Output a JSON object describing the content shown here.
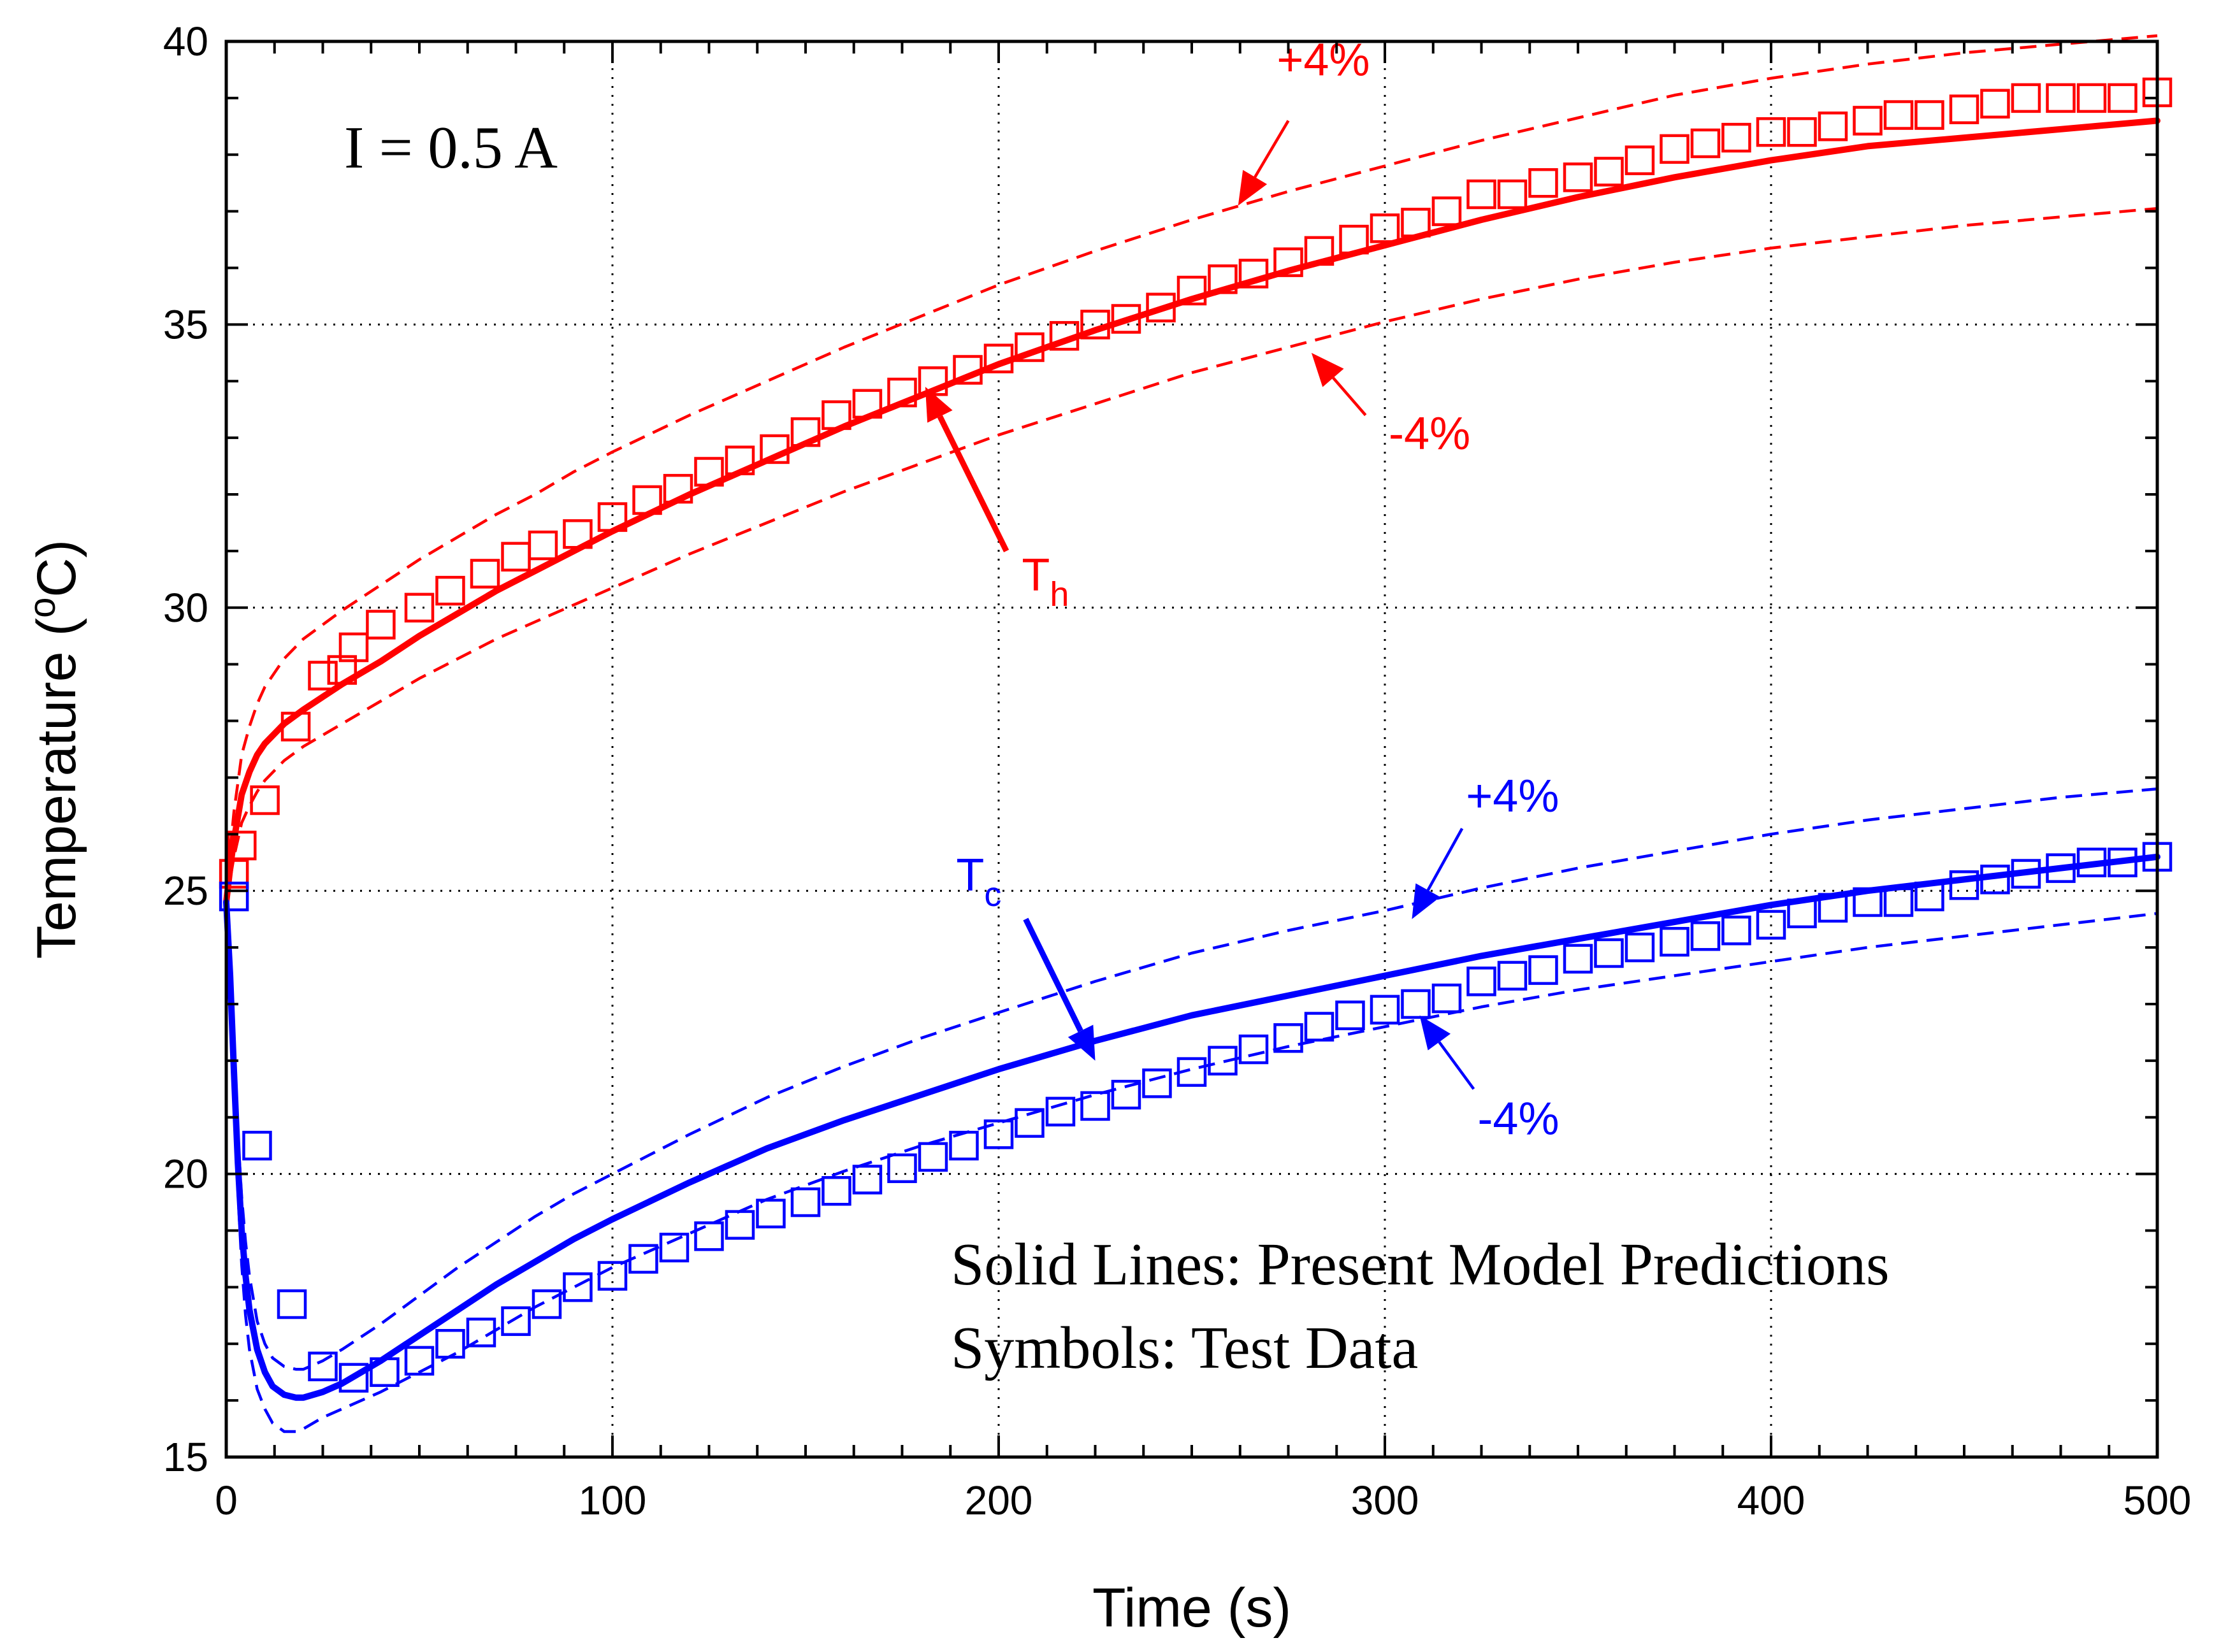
{
  "chart_data": {
    "type": "line",
    "title": "",
    "xlabel": "Time (s)",
    "ylabel": "Temperature (",
    "ylabel_sup": "o",
    "ylabel_tail": "C)",
    "xlim": [
      0,
      500
    ],
    "ylim": [
      15,
      40
    ],
    "xticks": [
      0,
      100,
      200,
      300,
      400,
      500
    ],
    "yticks": [
      15,
      20,
      25,
      30,
      35,
      40
    ],
    "xtick_labels": [
      "0",
      "100",
      "200",
      "300",
      "400",
      "500"
    ],
    "ytick_labels": [
      "15",
      "20",
      "25",
      "30",
      "35",
      "40"
    ],
    "x_minor_step": 12.5,
    "y_minor_step": 1,
    "grid": true,
    "condition_label": "I = 0.5 A",
    "legend_lines": [
      "Solid Lines: Present Model Predictions",
      "Symbols: Test Data"
    ],
    "colors": {
      "hot": "#ff0000",
      "cold": "#0000ff",
      "frame": "#000000"
    },
    "series": [
      {
        "name": "Th model",
        "style": "solid",
        "color": "#ff0000",
        "x": [
          0,
          1,
          2,
          3,
          4,
          6,
          8,
          10,
          15,
          20,
          30,
          40,
          50,
          60,
          70,
          80,
          90,
          100,
          120,
          140,
          160,
          180,
          200,
          225,
          250,
          275,
          300,
          325,
          350,
          375,
          400,
          425,
          450,
          475,
          500
        ],
        "y": [
          24.8,
          25.4,
          25.9,
          26.3,
          26.7,
          27.1,
          27.4,
          27.6,
          27.95,
          28.2,
          28.65,
          29.05,
          29.5,
          29.9,
          30.3,
          30.65,
          31.0,
          31.35,
          32.0,
          32.6,
          33.2,
          33.75,
          34.3,
          34.9,
          35.45,
          35.95,
          36.4,
          36.85,
          37.25,
          37.6,
          37.9,
          38.15,
          38.3,
          38.45,
          38.6
        ]
      },
      {
        "name": "Th +4%",
        "style": "dashed",
        "color": "#ff0000",
        "x": [
          0,
          1,
          2,
          3,
          4,
          6,
          8,
          10,
          15,
          20,
          30,
          40,
          50,
          60,
          70,
          80,
          90,
          100,
          120,
          140,
          160,
          180,
          200,
          225,
          250,
          275,
          300,
          325,
          350,
          375,
          400,
          425,
          450,
          475,
          500
        ],
        "y": [
          24.8,
          25.7,
          26.4,
          26.9,
          27.4,
          27.9,
          28.3,
          28.6,
          29.1,
          29.45,
          29.95,
          30.4,
          30.85,
          31.25,
          31.65,
          32.0,
          32.4,
          32.75,
          33.4,
          34.0,
          34.6,
          35.15,
          35.7,
          36.3,
          36.85,
          37.35,
          37.8,
          38.25,
          38.65,
          39.05,
          39.35,
          39.6,
          39.8,
          39.95,
          40.1
        ]
      },
      {
        "name": "Th -4%",
        "style": "dashed",
        "color": "#ff0000",
        "x": [
          0,
          1,
          2,
          3,
          4,
          6,
          8,
          10,
          15,
          20,
          30,
          40,
          50,
          60,
          70,
          80,
          90,
          100,
          120,
          140,
          160,
          180,
          200,
          225,
          250,
          275,
          300,
          325,
          350,
          375,
          400,
          425,
          450,
          475,
          500
        ],
        "y": [
          24.8,
          25.2,
          25.6,
          25.9,
          26.2,
          26.5,
          26.75,
          26.95,
          27.3,
          27.55,
          27.95,
          28.35,
          28.75,
          29.1,
          29.45,
          29.75,
          30.05,
          30.35,
          30.95,
          31.5,
          32.05,
          32.55,
          33.05,
          33.6,
          34.15,
          34.6,
          35.05,
          35.45,
          35.8,
          36.1,
          36.35,
          36.55,
          36.75,
          36.9,
          37.05
        ]
      },
      {
        "name": "Th test data",
        "style": "markers",
        "color": "#ff0000",
        "x": [
          2,
          4,
          10,
          18,
          25,
          30,
          33,
          40,
          50,
          58,
          67,
          75,
          82,
          91,
          100,
          109,
          117,
          125,
          133,
          142,
          150,
          158,
          166,
          175,
          183,
          192,
          200,
          208,
          217,
          225,
          233,
          242,
          250,
          258,
          266,
          275,
          283,
          292,
          300,
          308,
          316,
          325,
          333,
          341,
          350,
          358,
          366,
          375,
          383,
          391,
          400,
          408,
          416,
          425,
          433,
          441,
          450,
          458,
          466,
          475,
          483,
          491,
          500
        ],
        "y": [
          25.3,
          25.8,
          26.6,
          27.9,
          28.8,
          28.9,
          29.3,
          29.7,
          30.0,
          30.3,
          30.6,
          30.9,
          31.1,
          31.3,
          31.6,
          31.9,
          32.1,
          32.4,
          32.6,
          32.8,
          33.1,
          33.4,
          33.6,
          33.8,
          34.0,
          34.2,
          34.4,
          34.6,
          34.8,
          35.0,
          35.1,
          35.3,
          35.6,
          35.8,
          35.9,
          36.1,
          36.3,
          36.5,
          36.7,
          36.8,
          37.0,
          37.3,
          37.3,
          37.5,
          37.6,
          37.7,
          37.9,
          38.1,
          38.2,
          38.3,
          38.4,
          38.4,
          38.5,
          38.6,
          38.7,
          38.7,
          38.8,
          38.9,
          39.0,
          39.0,
          39.0,
          39.0,
          39.1
        ]
      },
      {
        "name": "Tc model",
        "style": "solid",
        "color": "#0000ff",
        "x": [
          0,
          1,
          2,
          3,
          4,
          5,
          6,
          8,
          10,
          12,
          15,
          18,
          20,
          25,
          30,
          40,
          50,
          60,
          70,
          80,
          90,
          100,
          120,
          140,
          160,
          180,
          200,
          225,
          250,
          275,
          300,
          325,
          350,
          375,
          400,
          425,
          450,
          475,
          500
        ],
        "y": [
          24.8,
          23.5,
          21.8,
          20.2,
          19.0,
          18.2,
          17.6,
          16.9,
          16.5,
          16.25,
          16.1,
          16.05,
          16.05,
          16.15,
          16.3,
          16.7,
          17.15,
          17.6,
          18.05,
          18.45,
          18.85,
          19.2,
          19.85,
          20.45,
          20.95,
          21.4,
          21.85,
          22.35,
          22.8,
          23.15,
          23.5,
          23.85,
          24.15,
          24.45,
          24.75,
          25.0,
          25.2,
          25.4,
          25.6
        ]
      },
      {
        "name": "Tc +4%",
        "style": "dashed",
        "color": "#0000ff",
        "x": [
          0,
          1,
          2,
          3,
          4,
          5,
          6,
          8,
          10,
          12,
          15,
          18,
          20,
          25,
          30,
          40,
          50,
          60,
          70,
          80,
          90,
          100,
          120,
          140,
          160,
          180,
          200,
          225,
          250,
          275,
          300,
          325,
          350,
          375,
          400,
          425,
          450,
          475,
          500
        ],
        "y": [
          24.8,
          23.8,
          22.2,
          20.7,
          19.6,
          18.8,
          18.2,
          17.4,
          17.0,
          16.75,
          16.6,
          16.55,
          16.55,
          16.7,
          16.9,
          17.35,
          17.85,
          18.35,
          18.8,
          19.25,
          19.65,
          20.0,
          20.7,
          21.35,
          21.9,
          22.4,
          22.85,
          23.4,
          23.9,
          24.3,
          24.65,
          25.05,
          25.4,
          25.7,
          26.0,
          26.25,
          26.45,
          26.65,
          26.8
        ]
      },
      {
        "name": "Tc -4%",
        "style": "dashed",
        "color": "#0000ff",
        "x": [
          0,
          1,
          2,
          3,
          4,
          5,
          6,
          8,
          10,
          12,
          15,
          18,
          20,
          25,
          30,
          40,
          50,
          60,
          70,
          80,
          90,
          100,
          120,
          140,
          160,
          180,
          200,
          225,
          250,
          275,
          300,
          325,
          350,
          375,
          400,
          425,
          450,
          475,
          500
        ],
        "y": [
          24.8,
          23.2,
          21.4,
          19.7,
          18.4,
          17.5,
          16.9,
          16.2,
          15.85,
          15.6,
          15.45,
          15.45,
          15.5,
          15.7,
          15.85,
          16.15,
          16.5,
          16.85,
          17.25,
          17.65,
          18.0,
          18.35,
          18.95,
          19.55,
          20.05,
          20.5,
          20.9,
          21.4,
          21.85,
          22.25,
          22.6,
          22.95,
          23.25,
          23.5,
          23.75,
          24.0,
          24.2,
          24.4,
          24.6
        ]
      },
      {
        "name": "Tc test data",
        "style": "markers",
        "color": "#0000ff",
        "x": [
          2,
          8,
          17,
          25,
          33,
          41,
          50,
          58,
          66,
          75,
          83,
          91,
          100,
          108,
          116,
          125,
          133,
          141,
          150,
          158,
          166,
          175,
          183,
          191,
          200,
          208,
          216,
          225,
          233,
          241,
          250,
          258,
          266,
          275,
          283,
          291,
          300,
          308,
          316,
          325,
          333,
          341,
          350,
          358,
          366,
          375,
          383,
          391,
          400,
          408,
          416,
          425,
          433,
          441,
          450,
          458,
          466,
          475,
          483,
          491,
          500
        ],
        "y": [
          24.9,
          20.5,
          17.7,
          16.6,
          16.4,
          16.5,
          16.7,
          17.0,
          17.2,
          17.4,
          17.7,
          18.0,
          18.2,
          18.5,
          18.7,
          18.9,
          19.1,
          19.3,
          19.5,
          19.7,
          19.9,
          20.1,
          20.3,
          20.5,
          20.7,
          20.9,
          21.1,
          21.2,
          21.4,
          21.6,
          21.8,
          22.0,
          22.2,
          22.4,
          22.6,
          22.8,
          22.9,
          23.0,
          23.1,
          23.4,
          23.5,
          23.6,
          23.8,
          23.9,
          24.0,
          24.1,
          24.2,
          24.3,
          24.4,
          24.6,
          24.7,
          24.8,
          24.8,
          24.9,
          25.1,
          25.2,
          25.3,
          25.4,
          25.5,
          25.5,
          25.6
        ]
      }
    ],
    "annotations": [
      {
        "text": "+4%",
        "color": "#ff0000",
        "label_at": [
          272,
          39.4
        ],
        "arrow_from": [
          275,
          38.6
        ],
        "arrow_to": [
          262,
          37.1
        ]
      },
      {
        "text": "-4%",
        "color": "#ff0000",
        "label_at": [
          301,
          32.8
        ],
        "arrow_from": [
          295,
          33.4
        ],
        "arrow_to": [
          281,
          34.5
        ]
      },
      {
        "text": "T",
        "sub": "h",
        "color": "#ff0000",
        "label_at": [
          206,
          30.3
        ],
        "arrow_from": [
          202,
          31.0
        ],
        "arrow_to": [
          181,
          33.9
        ]
      },
      {
        "text": "+4%",
        "color": "#0000ff",
        "label_at": [
          321,
          26.4
        ],
        "arrow_from": [
          320,
          26.1
        ],
        "arrow_to": [
          307,
          24.5
        ]
      },
      {
        "text": "-4%",
        "color": "#0000ff",
        "label_at": [
          324,
          20.7
        ],
        "arrow_from": [
          323,
          21.5
        ],
        "arrow_to": [
          309,
          22.8
        ]
      },
      {
        "text": "T",
        "sub": "c",
        "color": "#0000ff",
        "label_at": [
          189,
          25.0
        ],
        "arrow_from": [
          207,
          24.5
        ],
        "arrow_to": [
          225,
          22.0
        ]
      }
    ]
  }
}
